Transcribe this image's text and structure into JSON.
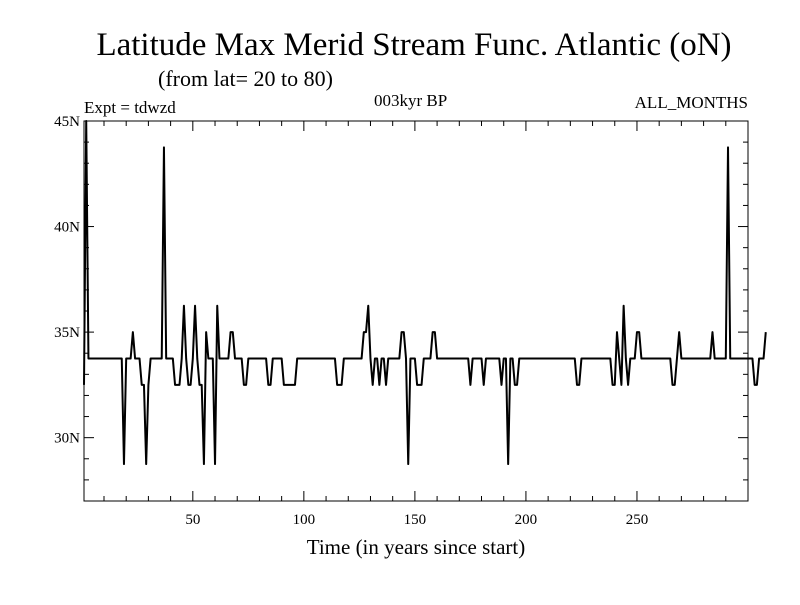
{
  "chart_data": {
    "type": "line",
    "title": "Latitude Max Merid Stream Func. Atlantic (oN)",
    "subtitle": "(from lat= 20 to 80)",
    "expt_label": "Expt = tdwzd",
    "period_label": "003kyr BP",
    "months_label": "ALL_MONTHS",
    "xlabel": "Time (in years since start)",
    "ylabel": "",
    "xlim": [
      1,
      300
    ],
    "ylim": [
      27.0,
      45.0
    ],
    "x_ticks": [
      50,
      100,
      150,
      200,
      250
    ],
    "x_tick_labels": [
      "50",
      "100",
      "150",
      "200",
      "250"
    ],
    "y_ticks": [
      30,
      35,
      40,
      45
    ],
    "y_tick_labels": [
      "30N",
      "35N",
      "40N",
      "45N"
    ],
    "grid": false,
    "series": [
      {
        "name": "",
        "x_start": 1,
        "x_step": 1,
        "values": [
          32.5,
          45.0,
          33.75,
          33.75,
          33.75,
          33.75,
          33.75,
          33.75,
          33.75,
          33.75,
          33.75,
          33.75,
          33.75,
          33.75,
          33.75,
          33.75,
          33.75,
          33.75,
          28.75,
          33.75,
          33.75,
          33.75,
          35.0,
          33.75,
          33.75,
          33.75,
          32.5,
          32.5,
          28.75,
          32.5,
          33.75,
          33.75,
          33.75,
          33.75,
          33.75,
          33.75,
          43.75,
          33.75,
          33.75,
          33.75,
          33.75,
          32.5,
          32.5,
          32.5,
          33.75,
          36.25,
          33.75,
          32.5,
          32.5,
          33.75,
          36.25,
          33.75,
          32.5,
          32.5,
          28.75,
          35.0,
          33.75,
          33.75,
          33.75,
          28.75,
          36.25,
          33.75,
          33.75,
          33.75,
          33.75,
          33.75,
          35.0,
          35.0,
          33.75,
          33.75,
          33.75,
          33.75,
          32.5,
          32.5,
          33.75,
          33.75,
          33.75,
          33.75,
          33.75,
          33.75,
          33.75,
          33.75,
          33.75,
          32.5,
          32.5,
          33.75,
          33.75,
          33.75,
          33.75,
          33.75,
          32.5,
          32.5,
          32.5,
          32.5,
          32.5,
          32.5,
          33.75,
          33.75,
          33.75,
          33.75,
          33.75,
          33.75,
          33.75,
          33.75,
          33.75,
          33.75,
          33.75,
          33.75,
          33.75,
          33.75,
          33.75,
          33.75,
          33.75,
          33.75,
          32.5,
          32.5,
          32.5,
          33.75,
          33.75,
          33.75,
          33.75,
          33.75,
          33.75,
          33.75,
          33.75,
          33.75,
          35.0,
          35.0,
          36.25,
          33.75,
          32.5,
          33.75,
          33.75,
          32.5,
          33.75,
          33.75,
          32.5,
          33.75,
          33.75,
          33.75,
          33.75,
          33.75,
          33.75,
          35.0,
          35.0,
          33.75,
          28.75,
          33.75,
          33.75,
          33.75,
          32.5,
          32.5,
          32.5,
          33.75,
          33.75,
          33.75,
          33.75,
          35.0,
          35.0,
          33.75,
          33.75,
          33.75,
          33.75,
          33.75,
          33.75,
          33.75,
          33.75,
          33.75,
          33.75,
          33.75,
          33.75,
          33.75,
          33.75,
          33.75,
          32.5,
          33.75,
          33.75,
          33.75,
          33.75,
          33.75,
          32.5,
          33.75,
          33.75,
          33.75,
          33.75,
          33.75,
          33.75,
          33.75,
          32.5,
          33.75,
          33.75,
          28.75,
          33.75,
          33.75,
          32.5,
          32.5,
          33.75,
          33.75,
          33.75,
          33.75,
          33.75,
          33.75,
          33.75,
          33.75,
          33.75,
          33.75,
          33.75,
          33.75,
          33.75,
          33.75,
          33.75,
          33.75,
          33.75,
          33.75,
          33.75,
          33.75,
          33.75,
          33.75,
          33.75,
          33.75,
          33.75,
          33.75,
          32.5,
          32.5,
          33.75,
          33.75,
          33.75,
          33.75,
          33.75,
          33.75,
          33.75,
          33.75,
          33.75,
          33.75,
          33.75,
          33.75,
          33.75,
          33.75,
          32.5,
          32.5,
          35.0,
          33.75,
          32.5,
          36.25,
          33.75,
          32.5,
          33.75,
          33.75,
          33.75,
          35.0,
          35.0,
          33.75,
          33.75,
          33.75,
          33.75,
          33.75,
          33.75,
          33.75,
          33.75,
          33.75,
          33.75,
          33.75,
          33.75,
          33.75,
          33.75,
          32.5,
          32.5,
          33.75,
          35.0,
          33.75,
          33.75,
          33.75,
          33.75,
          33.75,
          33.75,
          33.75,
          33.75,
          33.75,
          33.75,
          33.75,
          33.75,
          33.75,
          33.75,
          35.0,
          33.75,
          33.75,
          33.75,
          33.75,
          33.75,
          33.75,
          43.75,
          33.75,
          33.75,
          33.75,
          33.75,
          33.75,
          33.75,
          33.75,
          33.75,
          33.75,
          33.75,
          33.75,
          32.5,
          32.5,
          33.75,
          33.75,
          33.75,
          35.0
        ]
      }
    ],
    "colors": {
      "line": "#000000",
      "frame": "#000000",
      "background": "#ffffff"
    }
  }
}
